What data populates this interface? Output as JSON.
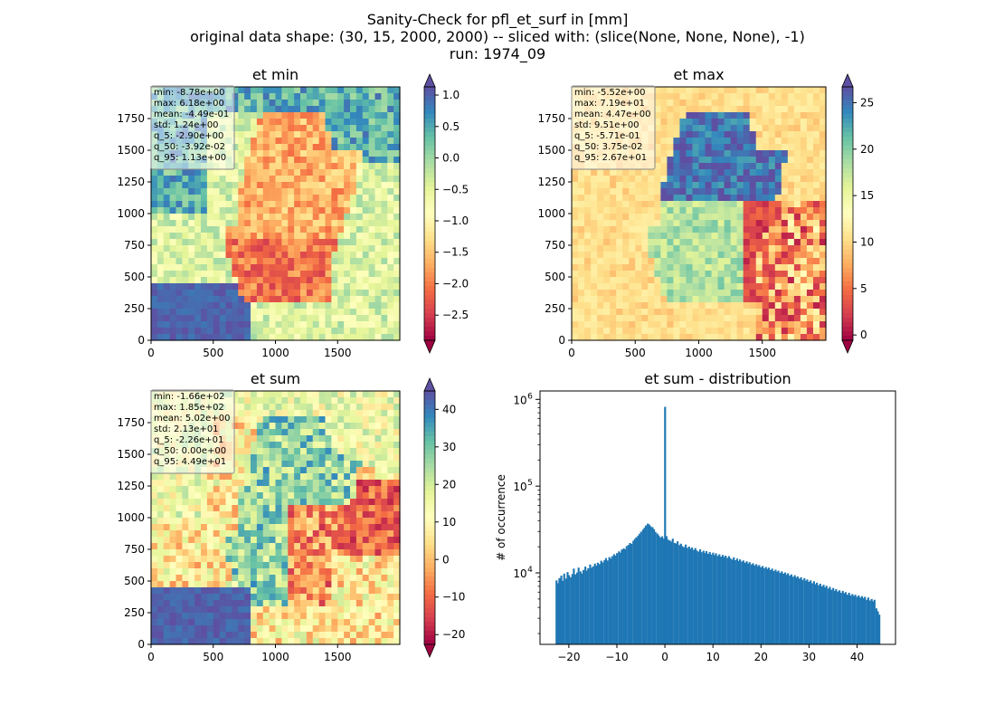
{
  "figure": {
    "suptitle": [
      "Sanity-Check for pfl_et_surf in [mm]",
      "original data shape: (30, 15, 2000, 2000) -- sliced with: (slice(None, None, None), -1)",
      "run: 1974_09"
    ]
  },
  "chart_data": [
    {
      "type": "heatmap",
      "title": "et min",
      "colormap": "Spectral",
      "x_ticks": [
        0,
        500,
        1000,
        1500
      ],
      "y_ticks": [
        0,
        250,
        500,
        750,
        1000,
        1250,
        1500,
        1750
      ],
      "xlim": [
        0,
        2000
      ],
      "ylim": [
        0,
        2000
      ],
      "colorbar": {
        "vmin": -2.9,
        "vmax": 1.13,
        "extend": "both",
        "ticks": [
          1.0,
          0.5,
          0.0,
          -0.5,
          -1.0,
          -1.5,
          -2.0,
          -2.5
        ],
        "tick_labels": [
          "1.0",
          "0.5",
          "0.0",
          "−0.5",
          "−1.0",
          "−1.5",
          "−2.0",
          "−2.5"
        ]
      },
      "stats": [
        "min: -8.78e+00",
        "max: 6.18e+00",
        "mean: -4.49e-01",
        "std: 1.24e+00",
        "q_5: -2.90e+00",
        "q_50: -3.92e-02",
        "q_95: 1.13e+00"
      ]
    },
    {
      "type": "heatmap",
      "title": "et max",
      "colormap": "Spectral",
      "x_ticks": [
        0,
        500,
        1000,
        1500
      ],
      "y_ticks": [
        0,
        250,
        500,
        750,
        1000,
        1250,
        1500,
        1750
      ],
      "xlim": [
        0,
        2000
      ],
      "ylim": [
        0,
        2000
      ],
      "colorbar": {
        "vmin": -0.571,
        "vmax": 26.7,
        "extend": "both",
        "ticks": [
          25,
          20,
          15,
          10,
          5,
          0
        ],
        "tick_labels": [
          "25",
          "20",
          "15",
          "10",
          "5",
          "0"
        ]
      },
      "stats": [
        "min: -5.52e+00",
        "max: 7.19e+01",
        "mean: 4.47e+00",
        "std: 9.51e+00",
        "q_5: -5.71e-01",
        "q_50: 3.75e-02",
        "q_95: 2.67e+01"
      ]
    },
    {
      "type": "heatmap",
      "title": "et sum",
      "colormap": "Spectral",
      "x_ticks": [
        0,
        500,
        1000,
        1500
      ],
      "y_ticks": [
        0,
        250,
        500,
        750,
        1000,
        1250,
        1500,
        1750
      ],
      "xlim": [
        0,
        2000
      ],
      "ylim": [
        0,
        2000
      ],
      "colorbar": {
        "vmin": -22.6,
        "vmax": 44.9,
        "extend": "both",
        "ticks": [
          40,
          30,
          20,
          10,
          0,
          -10,
          -20
        ],
        "tick_labels": [
          "40",
          "30",
          "20",
          "10",
          "0",
          "−10",
          "−20"
        ]
      },
      "stats": [
        "min: -1.66e+02",
        "max: 1.85e+02",
        "mean: 5.02e+00",
        "std: 2.13e+01",
        "q_5: -2.26e+01",
        "q_50: 0.00e+00",
        "q_95: 4.49e+01"
      ]
    },
    {
      "type": "bar",
      "title": "et sum - distribution",
      "xlabel": "",
      "ylabel": "# of occurrence",
      "y_scale": "log",
      "xlim": [
        -26,
        48
      ],
      "ylim": [
        1500,
        1250000
      ],
      "x_ticks": [
        -20,
        -10,
        0,
        10,
        20,
        30,
        40
      ],
      "x_tick_labels": [
        "−20",
        "−10",
        "0",
        "10",
        "20",
        "30",
        "40"
      ],
      "y_ticks": [
        10000,
        100000,
        1000000
      ],
      "color": "#1f77b4",
      "bin_width": 0.333,
      "bins": [
        [
          -22.6,
          8200
        ],
        [
          -22.3,
          7600
        ],
        [
          -22.0,
          8700
        ],
        [
          -21.6,
          9300
        ],
        [
          -21.3,
          8100
        ],
        [
          -21.0,
          9800
        ],
        [
          -20.6,
          8600
        ],
        [
          -20.3,
          10200
        ],
        [
          -20.0,
          9400
        ],
        [
          -19.6,
          8900
        ],
        [
          -19.3,
          9700
        ],
        [
          -19.0,
          11200
        ],
        [
          -18.6,
          9600
        ],
        [
          -18.3,
          10100
        ],
        [
          -18.0,
          11500
        ],
        [
          -17.6,
          10400
        ],
        [
          -17.3,
          9800
        ],
        [
          -17.0,
          10800
        ],
        [
          -16.6,
          11800
        ],
        [
          -16.3,
          10600
        ],
        [
          -16.0,
          11300
        ],
        [
          -15.6,
          12500
        ],
        [
          -15.3,
          11400
        ],
        [
          -15.0,
          11900
        ],
        [
          -14.6,
          12800
        ],
        [
          -14.3,
          12100
        ],
        [
          -14.0,
          13100
        ],
        [
          -13.6,
          12600
        ],
        [
          -13.3,
          13800
        ],
        [
          -13.0,
          13200
        ],
        [
          -12.6,
          14000
        ],
        [
          -12.3,
          14800
        ],
        [
          -12.0,
          13900
        ],
        [
          -11.6,
          15200
        ],
        [
          -11.3,
          14600
        ],
        [
          -11.0,
          15600
        ],
        [
          -10.6,
          16400
        ],
        [
          -10.3,
          15800
        ],
        [
          -10.0,
          16900
        ],
        [
          -9.6,
          17700
        ],
        [
          -9.3,
          17100
        ],
        [
          -9.0,
          18600
        ],
        [
          -8.6,
          19200
        ],
        [
          -8.3,
          18700
        ],
        [
          -8.0,
          20400
        ],
        [
          -7.6,
          21000
        ],
        [
          -7.3,
          22100
        ],
        [
          -7.0,
          21600
        ],
        [
          -6.6,
          23400
        ],
        [
          -6.3,
          24600
        ],
        [
          -6.0,
          25700
        ],
        [
          -5.6,
          26900
        ],
        [
          -5.3,
          28200
        ],
        [
          -5.0,
          29800
        ],
        [
          -4.6,
          31500
        ],
        [
          -4.3,
          33100
        ],
        [
          -4.0,
          35200
        ],
        [
          -3.6,
          37000
        ],
        [
          -3.3,
          36100
        ],
        [
          -3.0,
          34400
        ],
        [
          -2.6,
          33600
        ],
        [
          -2.3,
          31800
        ],
        [
          -2.0,
          29600
        ],
        [
          -1.6,
          28400
        ],
        [
          -1.3,
          27000
        ],
        [
          -1.0,
          25600
        ],
        [
          -0.6,
          26400
        ],
        [
          -0.3,
          24800
        ],
        [
          0.0,
          820000
        ],
        [
          0.3,
          26500
        ],
        [
          0.6,
          24200
        ],
        [
          1.0,
          23600
        ],
        [
          1.3,
          22900
        ],
        [
          1.6,
          24800
        ],
        [
          2.0,
          22100
        ],
        [
          2.3,
          21800
        ],
        [
          2.6,
          23100
        ],
        [
          3.0,
          20900
        ],
        [
          3.3,
          21700
        ],
        [
          3.6,
          20300
        ],
        [
          4.0,
          19800
        ],
        [
          4.3,
          21200
        ],
        [
          4.6,
          19400
        ],
        [
          5.0,
          20100
        ],
        [
          5.3,
          18900
        ],
        [
          5.6,
          19600
        ],
        [
          6.0,
          18400
        ],
        [
          6.3,
          19300
        ],
        [
          6.6,
          18100
        ],
        [
          7.0,
          17600
        ],
        [
          7.3,
          18700
        ],
        [
          7.6,
          17300
        ],
        [
          8.0,
          18000
        ],
        [
          8.3,
          16900
        ],
        [
          8.6,
          17800
        ],
        [
          9.0,
          16600
        ],
        [
          9.3,
          17400
        ],
        [
          9.6,
          16300
        ],
        [
          10.0,
          17100
        ],
        [
          10.3,
          16000
        ],
        [
          10.6,
          16800
        ],
        [
          11.0,
          15700
        ],
        [
          11.3,
          16400
        ],
        [
          11.6,
          15400
        ],
        [
          12.0,
          16100
        ],
        [
          12.3,
          15200
        ],
        [
          12.6,
          15800
        ],
        [
          13.0,
          14900
        ],
        [
          13.3,
          15600
        ],
        [
          13.6,
          14700
        ],
        [
          14.0,
          14200
        ],
        [
          14.3,
          15100
        ],
        [
          14.6,
          14000
        ],
        [
          15.0,
          14600
        ],
        [
          15.3,
          13700
        ],
        [
          15.6,
          14300
        ],
        [
          16.0,
          13500
        ],
        [
          16.3,
          13900
        ],
        [
          16.6,
          13100
        ],
        [
          17.0,
          13600
        ],
        [
          17.3,
          12800
        ],
        [
          17.6,
          13300
        ],
        [
          18.0,
          12500
        ],
        [
          18.3,
          12900
        ],
        [
          18.6,
          12200
        ],
        [
          19.0,
          12600
        ],
        [
          19.3,
          11900
        ],
        [
          19.6,
          12300
        ],
        [
          20.0,
          11600
        ],
        [
          20.3,
          12000
        ],
        [
          20.6,
          11300
        ],
        [
          21.0,
          11700
        ],
        [
          21.3,
          11100
        ],
        [
          21.6,
          11500
        ],
        [
          22.0,
          10800
        ],
        [
          22.3,
          11200
        ],
        [
          22.6,
          10500
        ],
        [
          23.0,
          10900
        ],
        [
          23.3,
          10300
        ],
        [
          23.6,
          10600
        ],
        [
          24.0,
          10000
        ],
        [
          24.3,
          10400
        ],
        [
          24.6,
          9800
        ],
        [
          25.0,
          10100
        ],
        [
          25.3,
          9500
        ],
        [
          25.6,
          9900
        ],
        [
          26.0,
          9300
        ],
        [
          26.3,
          9600
        ],
        [
          26.6,
          9000
        ],
        [
          27.0,
          9400
        ],
        [
          27.3,
          8800
        ],
        [
          27.6,
          9100
        ],
        [
          28.0,
          8600
        ],
        [
          28.3,
          8900
        ],
        [
          28.6,
          8300
        ],
        [
          29.0,
          8700
        ],
        [
          29.3,
          8100
        ],
        [
          29.6,
          8400
        ],
        [
          30.0,
          7900
        ],
        [
          30.3,
          8200
        ],
        [
          30.6,
          7600
        ],
        [
          31.0,
          8000
        ],
        [
          31.3,
          7400
        ],
        [
          31.6,
          7700
        ],
        [
          32.0,
          7200
        ],
        [
          32.3,
          7500
        ],
        [
          32.6,
          7000
        ],
        [
          33.0,
          7300
        ],
        [
          33.3,
          6800
        ],
        [
          33.6,
          7100
        ],
        [
          34.0,
          6600
        ],
        [
          34.3,
          6900
        ],
        [
          34.6,
          6400
        ],
        [
          35.0,
          6700
        ],
        [
          35.3,
          6200
        ],
        [
          35.6,
          6500
        ],
        [
          36.0,
          6100
        ],
        [
          36.3,
          6300
        ],
        [
          36.6,
          5900
        ],
        [
          37.0,
          6200
        ],
        [
          37.3,
          5800
        ],
        [
          37.6,
          6000
        ],
        [
          38.0,
          5600
        ],
        [
          38.3,
          5900
        ],
        [
          38.6,
          5500
        ],
        [
          39.0,
          5700
        ],
        [
          39.3,
          5400
        ],
        [
          39.6,
          5600
        ],
        [
          40.0,
          5300
        ],
        [
          40.3,
          5500
        ],
        [
          40.6,
          5200
        ],
        [
          41.0,
          5400
        ],
        [
          41.3,
          5100
        ],
        [
          41.6,
          5300
        ],
        [
          42.0,
          4900
        ],
        [
          42.3,
          5200
        ],
        [
          42.6,
          4800
        ],
        [
          43.0,
          5000
        ],
        [
          43.3,
          4700
        ],
        [
          43.6,
          4900
        ],
        [
          44.0,
          3900
        ],
        [
          44.3,
          3600
        ],
        [
          44.6,
          3300
        ]
      ]
    }
  ]
}
